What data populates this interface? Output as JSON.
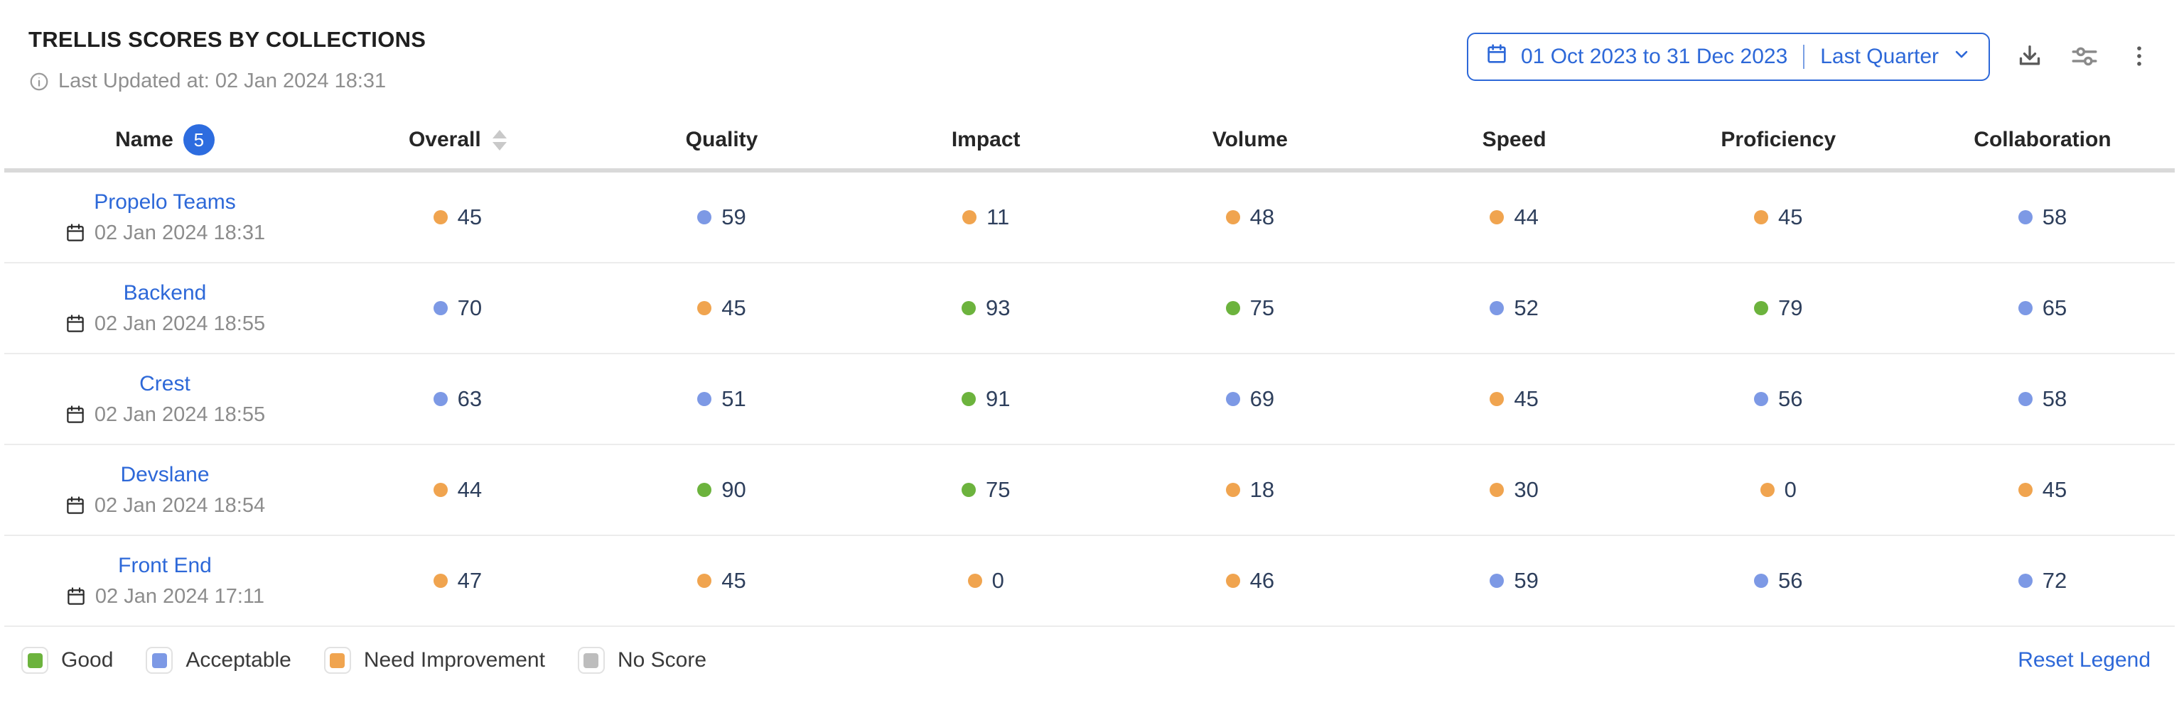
{
  "widget": {
    "title": "TRELLIS SCORES BY COLLECTIONS",
    "last_updated_label": "Last Updated at: 02 Jan 2024 18:31"
  },
  "controls": {
    "date_range": "01 Oct 2023 to 31 Dec 2023",
    "date_preset": "Last Quarter",
    "icons": {
      "calendar": "calendar outline glyph",
      "chevron_down": "∨",
      "download": "⭳",
      "settings": "slider controls glyph",
      "more": "⋮",
      "info": "ⓘ",
      "sort": "⇅"
    }
  },
  "table": {
    "name_badge_count": "5",
    "columns": [
      {
        "key": "name",
        "label": "Name"
      },
      {
        "key": "overall",
        "label": "Overall",
        "sortable": true
      },
      {
        "key": "quality",
        "label": "Quality"
      },
      {
        "key": "impact",
        "label": "Impact"
      },
      {
        "key": "volume",
        "label": "Volume"
      },
      {
        "key": "speed",
        "label": "Speed"
      },
      {
        "key": "proficiency",
        "label": "Proficiency"
      },
      {
        "key": "collaboration",
        "label": "Collaboration"
      }
    ],
    "rows": [
      {
        "name": "Propelo Teams",
        "updated": "02 Jan 2024 18:31",
        "scores": [
          {
            "value": "45",
            "status": "need_improvement"
          },
          {
            "value": "59",
            "status": "acceptable"
          },
          {
            "value": "11",
            "status": "need_improvement"
          },
          {
            "value": "48",
            "status": "need_improvement"
          },
          {
            "value": "44",
            "status": "need_improvement"
          },
          {
            "value": "45",
            "status": "need_improvement"
          },
          {
            "value": "58",
            "status": "acceptable"
          }
        ]
      },
      {
        "name": "Backend",
        "updated": "02 Jan 2024 18:55",
        "scores": [
          {
            "value": "70",
            "status": "acceptable"
          },
          {
            "value": "45",
            "status": "need_improvement"
          },
          {
            "value": "93",
            "status": "good"
          },
          {
            "value": "75",
            "status": "good"
          },
          {
            "value": "52",
            "status": "acceptable"
          },
          {
            "value": "79",
            "status": "good"
          },
          {
            "value": "65",
            "status": "acceptable"
          }
        ]
      },
      {
        "name": "Crest",
        "updated": "02 Jan 2024 18:55",
        "scores": [
          {
            "value": "63",
            "status": "acceptable"
          },
          {
            "value": "51",
            "status": "acceptable"
          },
          {
            "value": "91",
            "status": "good"
          },
          {
            "value": "69",
            "status": "acceptable"
          },
          {
            "value": "45",
            "status": "need_improvement"
          },
          {
            "value": "56",
            "status": "acceptable"
          },
          {
            "value": "58",
            "status": "acceptable"
          }
        ]
      },
      {
        "name": "Devslane",
        "updated": "02 Jan 2024 18:54",
        "scores": [
          {
            "value": "44",
            "status": "need_improvement"
          },
          {
            "value": "90",
            "status": "good"
          },
          {
            "value": "75",
            "status": "good"
          },
          {
            "value": "18",
            "status": "need_improvement"
          },
          {
            "value": "30",
            "status": "need_improvement"
          },
          {
            "value": "0",
            "status": "need_improvement"
          },
          {
            "value": "45",
            "status": "need_improvement"
          }
        ]
      },
      {
        "name": "Front End",
        "updated": "02 Jan 2024 17:11",
        "scores": [
          {
            "value": "47",
            "status": "need_improvement"
          },
          {
            "value": "45",
            "status": "need_improvement"
          },
          {
            "value": "0",
            "status": "need_improvement"
          },
          {
            "value": "46",
            "status": "need_improvement"
          },
          {
            "value": "59",
            "status": "acceptable"
          },
          {
            "value": "56",
            "status": "acceptable"
          },
          {
            "value": "72",
            "status": "acceptable"
          }
        ]
      }
    ]
  },
  "legend": {
    "items": [
      {
        "label": "Good",
        "status": "good"
      },
      {
        "label": "Acceptable",
        "status": "acceptable"
      },
      {
        "label": "Need Improvement",
        "status": "need_improvement"
      },
      {
        "label": "No Score",
        "status": "no_score"
      }
    ],
    "reset_label": "Reset Legend"
  },
  "colors": {
    "accent": "#2d68d8",
    "status": {
      "good": "#6cb33d",
      "acceptable": "#7d99e5",
      "need_improvement": "#f0a44f",
      "no_score": "#bdbdbd"
    }
  }
}
